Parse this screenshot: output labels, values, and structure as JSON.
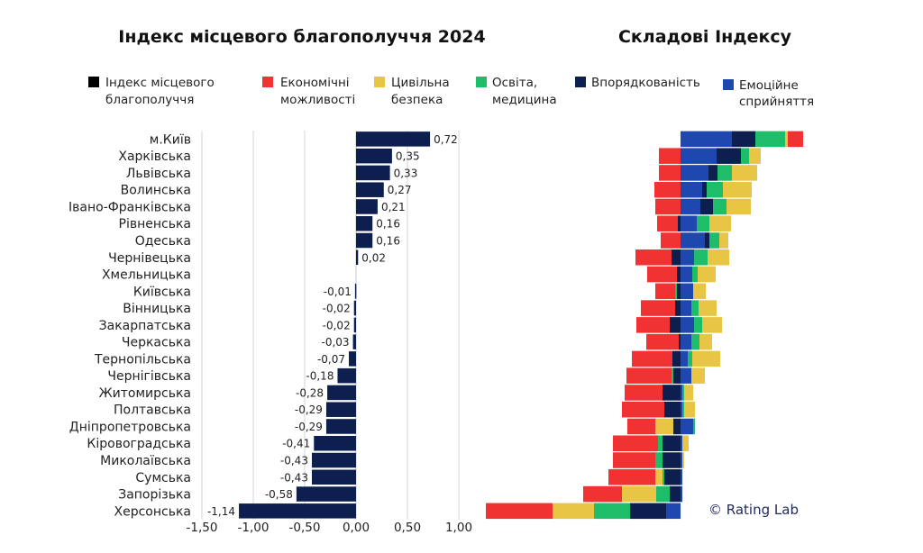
{
  "titles": {
    "left": "Індекс місцевого благополуччя 2024",
    "right": "Складові Індексу"
  },
  "legend": [
    {
      "name": "index",
      "line1": "Індекс місцевого",
      "line2": "благополуччя",
      "color": "#000000"
    },
    {
      "name": "economic",
      "line1": "Економічні",
      "line2": "можливості",
      "color": "#f03232"
    },
    {
      "name": "safety",
      "line1": "Цивільна",
      "line2": "безпека",
      "color": "#e9c546"
    },
    {
      "name": "education",
      "line1": "Освіта,",
      "line2": "медицина",
      "color": "#1dbd6a"
    },
    {
      "name": "order",
      "line1": "Впорядкованість",
      "line2": "",
      "color": "#0d1f4f"
    },
    {
      "name": "emotion",
      "line1": "Емоційне",
      "line2": "сприйняття",
      "color": "#1e47b0"
    }
  ],
  "credit": "© Rating Lab",
  "chart_data": [
    {
      "type": "bar",
      "orientation": "horizontal",
      "title": "Індекс місцевого благополуччя 2024",
      "categories": [
        "м.Київ",
        "Харківська",
        "Львівська",
        "Волинська",
        "Івано-Франківська",
        "Рівненська",
        "Одеська",
        "Чернівецька",
        "Хмельницька",
        "Київська",
        "Вінницька",
        "Закарпатська",
        "Черкаська",
        "Тернопільська",
        "Чернігівська",
        "Житомирська",
        "Полтавська",
        "Дніпропетровська",
        "Кіровоградська",
        "Миколаївська",
        "Сумська",
        "Запорізька",
        "Херсонська"
      ],
      "values": [
        0.72,
        0.35,
        0.33,
        0.27,
        0.21,
        0.16,
        0.16,
        0.02,
        0,
        -0.01,
        -0.02,
        -0.02,
        -0.03,
        -0.07,
        -0.18,
        -0.28,
        -0.29,
        -0.29,
        -0.41,
        -0.43,
        -0.43,
        -0.58,
        -1.14
      ],
      "value_labels": [
        "0,72",
        "0,35",
        "0,33",
        "0,27",
        "0,21",
        "0,16",
        "0,16",
        "0,02",
        "",
        "-0,01",
        "-0,02",
        "-0,02",
        "-0,03",
        "-0,07",
        "-0,18",
        "-0,28",
        "-0,29",
        "-0,29",
        "-0,41",
        "-0,43",
        "-0,43",
        "-0,58",
        "-1,14"
      ],
      "xlim": [
        -1.5,
        1.0
      ],
      "xticks": [
        -1.5,
        -1.0,
        -0.5,
        0,
        0.5,
        1.0
      ],
      "xtick_labels": [
        "-1,50",
        "-1,00",
        "-0,50",
        "0,00",
        "0,50",
        "1,00"
      ],
      "grid": true,
      "bar_color": "#0d1f4f"
    },
    {
      "type": "bar",
      "orientation": "horizontal",
      "stacked": "diverging",
      "title": "Складові Індексу",
      "categories": [
        "м.Київ",
        "Харківська",
        "Львівська",
        "Волинська",
        "Івано-Франківська",
        "Рівненська",
        "Одеська",
        "Чернівецька",
        "Хмельницька",
        "Київська",
        "Вінницька",
        "Закарпатська",
        "Черкаська",
        "Тернопільська",
        "Чернігівська",
        "Житомирська",
        "Полтавська",
        "Дніпропетровська",
        "Кіровоградська",
        "Миколаївська",
        "Сумська",
        "Запорізька",
        "Херсонська"
      ],
      "negative_order": [
        "emotion",
        "order",
        "education",
        "safety",
        "economic"
      ],
      "positive_order": [
        "emotion",
        "order",
        "education",
        "safety",
        "economic"
      ],
      "series": [
        {
          "name": "Емоційне сприйняття",
          "key": "emotion",
          "color": "#1e47b0",
          "values": [
            0.57,
            0.4,
            0.31,
            0.24,
            0.22,
            0.18,
            0.27,
            0.15,
            0.13,
            0.14,
            0.12,
            0.15,
            0.12,
            0.08,
            0.12,
            0.02,
            0.02,
            0.14,
            0.02,
            0.02,
            0.02,
            0.02,
            -0.16
          ]
        },
        {
          "name": "Впорядкованість",
          "key": "order",
          "color": "#0d1f4f",
          "values": [
            0.26,
            0.27,
            0.1,
            0.05,
            0.14,
            -0.03,
            0.05,
            -0.1,
            -0.04,
            -0.04,
            -0.06,
            -0.12,
            -0.02,
            -0.09,
            -0.08,
            -0.2,
            -0.18,
            -0.08,
            -0.2,
            -0.2,
            -0.18,
            -0.12,
            -0.4
          ]
        },
        {
          "name": "Освіта, медицина",
          "key": "education",
          "color": "#1dbd6a",
          "values": [
            0.33,
            0.09,
            0.16,
            0.18,
            0.15,
            0.14,
            0.11,
            0.15,
            0.06,
            -0.02,
            0.08,
            0.09,
            0.09,
            0.05,
            -0.02,
            0.02,
            0.02,
            0.02,
            -0.05,
            -0.08,
            -0.02,
            -0.15,
            -0.4
          ]
        },
        {
          "name": "Цивільна безпека",
          "key": "safety",
          "color": "#e9c546",
          "values": [
            0.03,
            0.13,
            0.28,
            0.32,
            0.27,
            0.24,
            0.1,
            0.24,
            0.2,
            0.14,
            0.2,
            0.22,
            0.14,
            0.31,
            0.15,
            0.1,
            0.12,
            -0.2,
            0.07,
            0.02,
            -0.08,
            -0.38,
            -0.46
          ]
        },
        {
          "name": "Економічні можливості",
          "key": "economic",
          "color": "#f03232",
          "values": [
            0.17,
            -0.24,
            -0.24,
            -0.29,
            -0.28,
            -0.23,
            -0.22,
            -0.4,
            -0.33,
            -0.22,
            -0.38,
            -0.37,
            -0.36,
            -0.45,
            -0.5,
            -0.42,
            -0.47,
            -0.31,
            -0.5,
            -0.47,
            -0.52,
            -0.43,
            -0.74
          ]
        }
      ]
    }
  ]
}
